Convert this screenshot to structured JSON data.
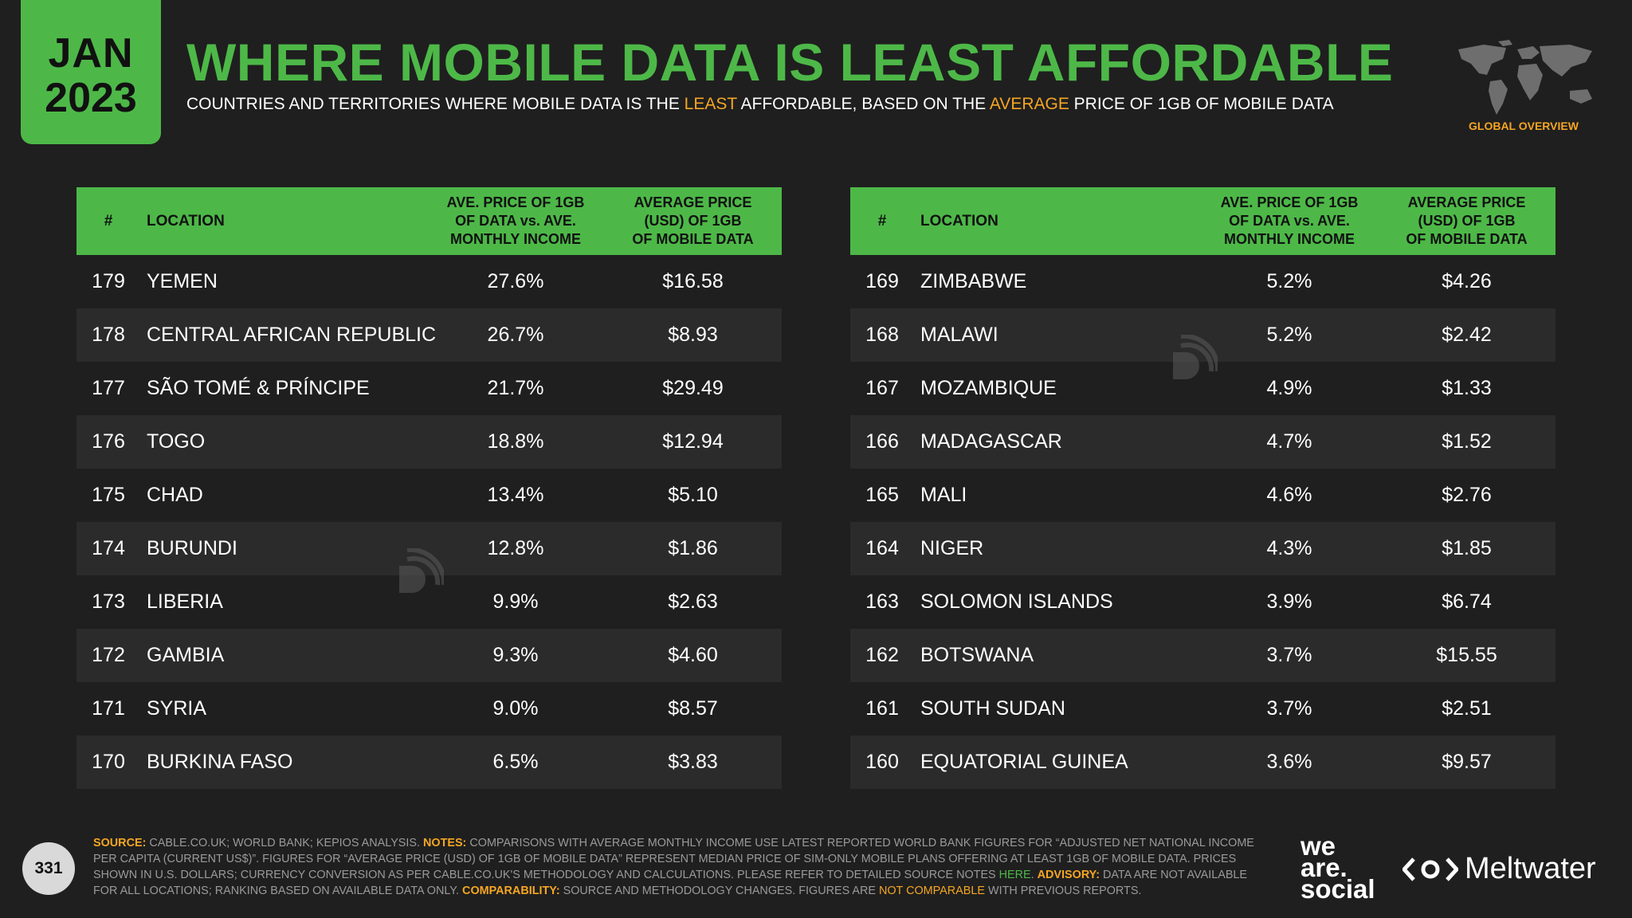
{
  "badge": {
    "month": "JAN",
    "year": "2023"
  },
  "title": "WHERE MOBILE DATA IS LEAST AFFORDABLE",
  "subtitle": {
    "p1": "COUNTRIES AND TERRITORIES WHERE MOBILE DATA IS THE ",
    "hl1": "LEAST",
    "p2": " AFFORDABLE, BASED ON THE ",
    "hl2": "AVERAGE",
    "p3": " PRICE OF 1GB OF MOBILE DATA"
  },
  "globe_label": "GLOBAL OVERVIEW",
  "headers": {
    "rank": "#",
    "location": "LOCATION",
    "col_a": [
      "AVE. PRICE OF 1GB",
      "OF DATA vs. AVE.",
      "MONTHLY INCOME"
    ],
    "col_b": [
      "AVERAGE PRICE",
      "(USD) OF 1GB",
      "OF MOBILE DATA"
    ]
  },
  "left_rows": [
    {
      "rank": "179",
      "location": "YEMEN",
      "ratio": "27.6%",
      "price": "$16.58"
    },
    {
      "rank": "178",
      "location": "CENTRAL AFRICAN REPUBLIC",
      "ratio": "26.7%",
      "price": "$8.93"
    },
    {
      "rank": "177",
      "location": "SÃO TOMÉ & PRÍNCIPE",
      "ratio": "21.7%",
      "price": "$29.49"
    },
    {
      "rank": "176",
      "location": "TOGO",
      "ratio": "18.8%",
      "price": "$12.94"
    },
    {
      "rank": "175",
      "location": "CHAD",
      "ratio": "13.4%",
      "price": "$5.10"
    },
    {
      "rank": "174",
      "location": "BURUNDI",
      "ratio": "12.8%",
      "price": "$1.86"
    },
    {
      "rank": "173",
      "location": "LIBERIA",
      "ratio": "9.9%",
      "price": "$2.63"
    },
    {
      "rank": "172",
      "location": "GAMBIA",
      "ratio": "9.3%",
      "price": "$4.60"
    },
    {
      "rank": "171",
      "location": "SYRIA",
      "ratio": "9.0%",
      "price": "$8.57"
    },
    {
      "rank": "170",
      "location": "BURKINA FASO",
      "ratio": "6.5%",
      "price": "$3.83"
    }
  ],
  "right_rows": [
    {
      "rank": "169",
      "location": "ZIMBABWE",
      "ratio": "5.2%",
      "price": "$4.26"
    },
    {
      "rank": "168",
      "location": "MALAWI",
      "ratio": "5.2%",
      "price": "$2.42"
    },
    {
      "rank": "167",
      "location": "MOZAMBIQUE",
      "ratio": "4.9%",
      "price": "$1.33"
    },
    {
      "rank": "166",
      "location": "MADAGASCAR",
      "ratio": "4.7%",
      "price": "$1.52"
    },
    {
      "rank": "165",
      "location": "MALI",
      "ratio": "4.6%",
      "price": "$2.76"
    },
    {
      "rank": "164",
      "location": "NIGER",
      "ratio": "4.3%",
      "price": "$1.85"
    },
    {
      "rank": "163",
      "location": "SOLOMON ISLANDS",
      "ratio": "3.9%",
      "price": "$6.74"
    },
    {
      "rank": "162",
      "location": "BOTSWANA",
      "ratio": "3.7%",
      "price": "$15.55"
    },
    {
      "rank": "161",
      "location": "SOUTH SUDAN",
      "ratio": "3.7%",
      "price": "$2.51"
    },
    {
      "rank": "160",
      "location": "EQUATORIAL GUINEA",
      "ratio": "3.6%",
      "price": "$9.57"
    }
  ],
  "page_number": "331",
  "footnote": {
    "source_label": "SOURCE:",
    "source_text": " CABLE.CO.UK; WORLD BANK; KEPIOS ANALYSIS. ",
    "notes_label": "NOTES:",
    "notes_text": " COMPARISONS WITH AVERAGE MONTHLY INCOME USE LATEST REPORTED WORLD BANK FIGURES FOR “ADJUSTED NET NATIONAL INCOME PER CAPITA (CURRENT US$)”. FIGURES FOR “AVERAGE PRICE (USD) OF 1GB OF MOBILE DATA” REPRESENT MEDIAN PRICE OF SIM-ONLY MOBILE PLANS OFFERING AT LEAST 1GB OF MOBILE DATA. PRICES SHOWN IN U.S. DOLLARS; CURRENCY CONVERSION AS PER CABLE.CO.UK'S METHODOLOGY AND CALCULATIONS. PLEASE REFER TO DETAILED SOURCE NOTES ",
    "here": "HERE",
    "notes_end": ". ",
    "advisory_label": "ADVISORY:",
    "advisory_text": " DATA ARE NOT AVAILABLE FOR ALL LOCATIONS; RANKING BASED ON AVAILABLE DATA ONLY. ",
    "comp_label": "COMPARABILITY:",
    "comp_text": " SOURCE AND METHODOLOGY CHANGES. FIGURES ARE ",
    "not_comparable": "NOT COMPARABLE",
    "comp_end": " WITH PREVIOUS REPORTS."
  },
  "brand": {
    "was_1": "we",
    "was_2": "are.",
    "was_3": "social",
    "meltwater": "Meltwater"
  },
  "colors": {
    "accent": "#4db848",
    "highlight": "#f5a623",
    "background": "#1f1f1f"
  }
}
